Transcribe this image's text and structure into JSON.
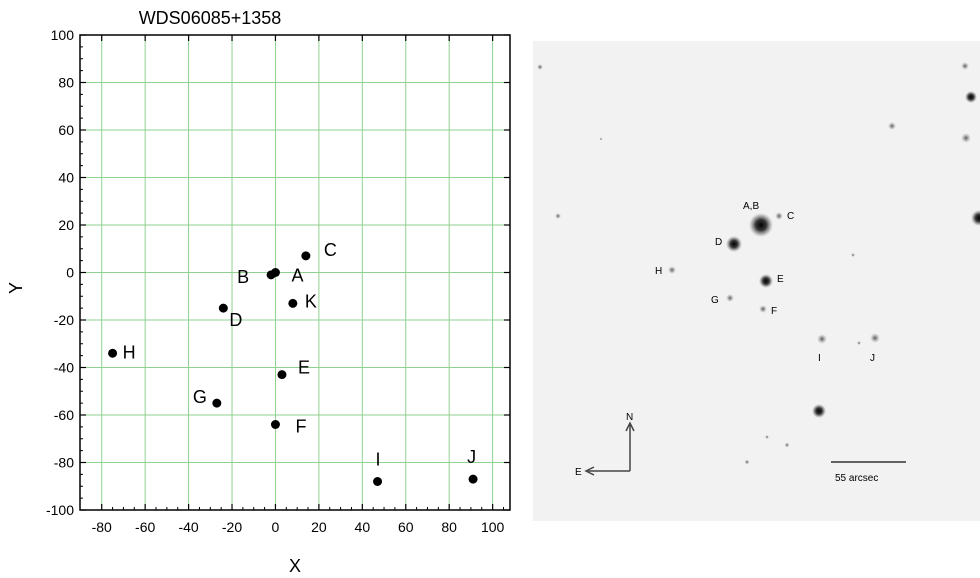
{
  "chart_data": {
    "type": "scatter",
    "title": "WDS06085+1358",
    "xlabel": "X",
    "ylabel": "Y",
    "xlim": [
      -90,
      108
    ],
    "ylim": [
      -100,
      100
    ],
    "xticks": [
      -80,
      -60,
      -40,
      -20,
      0,
      20,
      40,
      60,
      80,
      100
    ],
    "yticks": [
      100,
      80,
      60,
      40,
      20,
      0,
      -20,
      -40,
      -60,
      -80,
      -100
    ],
    "grid": true,
    "grid_color": "#8fd18f",
    "marker_color": "#000000",
    "points": [
      {
        "label": "A",
        "x": 0,
        "y": 0
      },
      {
        "label": "B",
        "x": -2,
        "y": -1
      },
      {
        "label": "C",
        "x": 14,
        "y": 7
      },
      {
        "label": "D",
        "x": -24,
        "y": -15
      },
      {
        "label": "E",
        "x": 3,
        "y": -43
      },
      {
        "label": "F",
        "x": 0,
        "y": -64
      },
      {
        "label": "G",
        "x": -27,
        "y": -55
      },
      {
        "label": "H",
        "x": -75,
        "y": -34
      },
      {
        "label": "I",
        "x": 47,
        "y": -88
      },
      {
        "label": "J",
        "x": 91,
        "y": -87
      },
      {
        "label": "K",
        "x": 8,
        "y": -13
      }
    ]
  },
  "sky_image": {
    "star_labels": {
      "ab": "A,B",
      "c": "C",
      "d": "D",
      "e": "E",
      "f": "F",
      "g": "G",
      "h": "H",
      "i": "I",
      "j": "J"
    },
    "compass": {
      "north": "N",
      "east": "E"
    },
    "scale_bar_label": "55 arcsec"
  }
}
